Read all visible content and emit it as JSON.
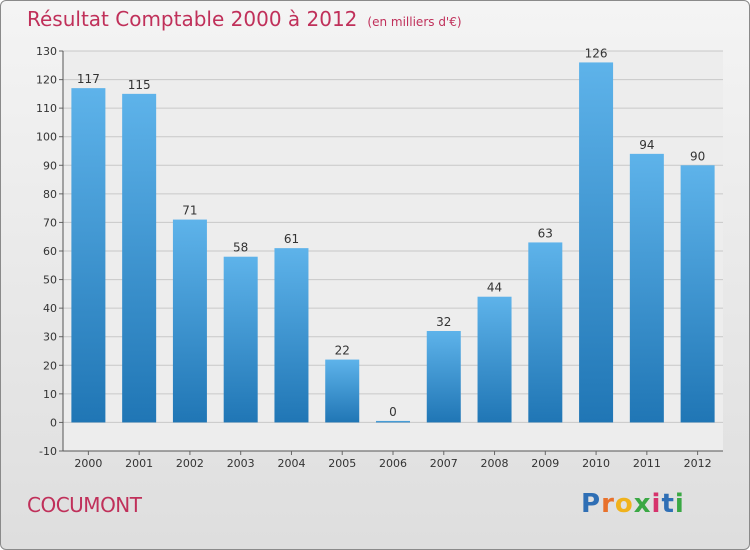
{
  "header": {
    "title": "Résultat Comptable 2000 à 2012",
    "subtitle": "(en milliers d'€)"
  },
  "footer": {
    "commune": "COCUMONT",
    "logo": [
      "P",
      "r",
      "o",
      "x",
      "i",
      "t",
      "i"
    ]
  },
  "colors": {
    "title": "#c0305a",
    "bar_light": "#5eb3ea",
    "bar_dark": "#2076b5",
    "grid": "#c8c8c8",
    "logo": [
      "#2f6fb5",
      "#e8712b",
      "#f0b21c",
      "#3aa844",
      "#d6336c",
      "#2f6fb5",
      "#3aa844"
    ]
  },
  "chart_data": {
    "type": "bar",
    "title": "Résultat Comptable 2000 à 2012",
    "xlabel": "",
    "ylabel": "en milliers d'€",
    "categories": [
      "2000",
      "2001",
      "2002",
      "2003",
      "2004",
      "2005",
      "2006",
      "2007",
      "2008",
      "2009",
      "2010",
      "2011",
      "2012"
    ],
    "values": [
      117,
      115,
      71,
      58,
      61,
      22,
      0,
      32,
      44,
      63,
      126,
      94,
      90
    ],
    "ylim": [
      -10,
      130
    ],
    "yticks": [
      -10,
      0,
      10,
      20,
      30,
      40,
      50,
      60,
      70,
      80,
      90,
      100,
      110,
      120,
      130
    ],
    "grid": true
  }
}
